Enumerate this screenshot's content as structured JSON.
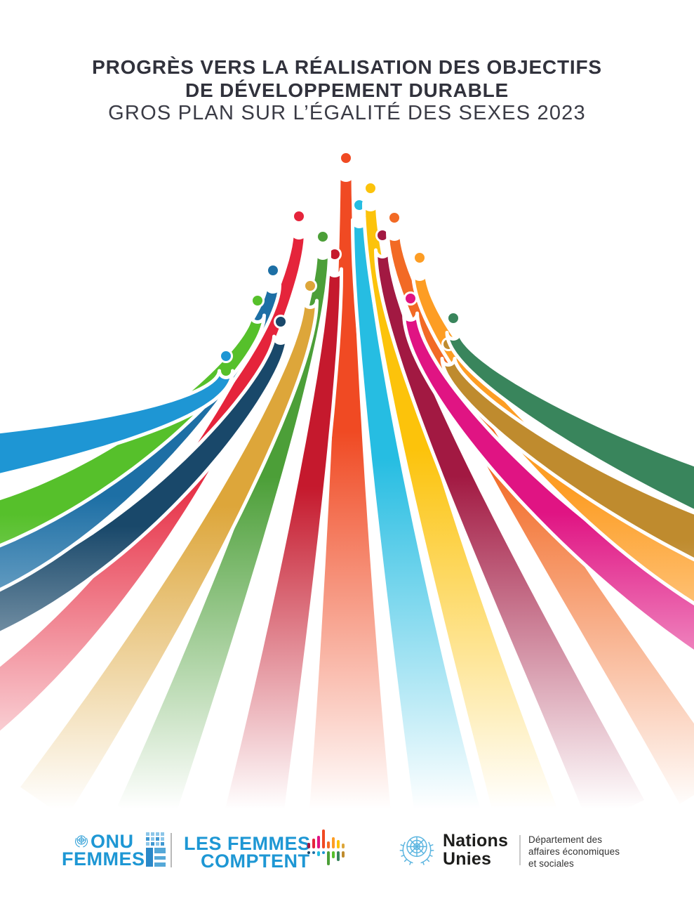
{
  "title": {
    "line1": "PROGRÈS VERS LA RÉALISATION DES OBJECTIFS",
    "line2": "DE DÉVELOPPEMENT DURABLE",
    "line3": "GROS PLAN SUR L’ÉGALITÉ DES SEXES 2023",
    "color": "#31323c"
  },
  "graphic": {
    "ribbon_colors": [
      "#1E96D4",
      "#56C02B",
      "#1D6FA5",
      "#19486A",
      "#E5243B",
      "#DDA63A",
      "#4C9F38",
      "#C5192D",
      "#F04A23",
      "#26BDE2",
      "#FCC30B",
      "#A21942",
      "#F26A25",
      "#E01483",
      "#FD9D24",
      "#BF8B2E",
      "#39855C"
    ],
    "fade_to": "#ffffff"
  },
  "logos": {
    "onu_femmes": {
      "line1": "ONU",
      "line2": "FEMMES",
      "color": "#1e97d4"
    },
    "femmes_comptent": {
      "line1": "LES FEMMES",
      "line2": "COMPTENT",
      "color": "#1b9cd8"
    },
    "nations_unies": {
      "line1": "Nations",
      "line2": "Unies",
      "text_color": "#1d1d1b",
      "emblem_color": "#5bb5e0"
    },
    "department": {
      "line1": "Département des",
      "line2": "affaires économiques",
      "line3": "et sociales",
      "color": "#333333"
    }
  }
}
